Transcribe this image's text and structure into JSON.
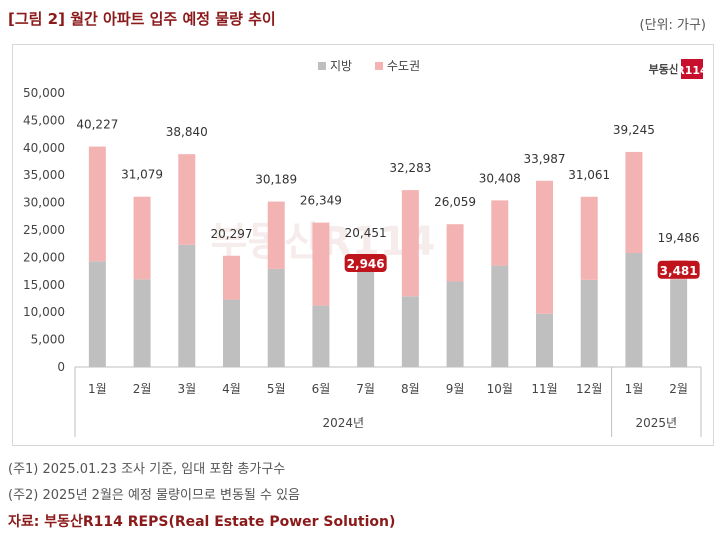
{
  "header": {
    "title": "[그림 2] 월간 아파트 입주 예정 물량 추이",
    "unit": "(단위: 가구)"
  },
  "logo": {
    "text": "부동산",
    "mark": "R114",
    "color": "#c8102e"
  },
  "watermark": "부동산R114",
  "notes": {
    "note1": "(주1) 2025.01.23 조사 기준, 임대 포함 총가구수",
    "note2": "(주2) 2025년 2월은 예정 물량이므로 변동될 수 있음"
  },
  "source": "자료: 부동산R114 REPS(Real Estate Power Solution)",
  "colors": {
    "regional": "#bfbfbf",
    "capital": "#f4b3b3",
    "highlight_label_bg": "#c0141c",
    "title": "#8b1a1a"
  },
  "chart_data": {
    "type": "bar",
    "stacked": true,
    "title": "",
    "legend": [
      "지방",
      "수도권"
    ],
    "legend_position": "top-center",
    "categories": [
      "1월",
      "2월",
      "3월",
      "4월",
      "5월",
      "6월",
      "7월",
      "8월",
      "9월",
      "10월",
      "11월",
      "12월",
      "1월",
      "2월"
    ],
    "year_groups": [
      {
        "label": "2024년",
        "count": 12
      },
      {
        "label": "2025년",
        "count": 2
      }
    ],
    "series": [
      {
        "name": "지방",
        "values": [
          19300,
          16000,
          22300,
          12300,
          17900,
          11200,
          17505,
          12900,
          15600,
          18500,
          9700,
          15900,
          20800,
          16005
        ]
      },
      {
        "name": "수도권",
        "values": [
          20927,
          15079,
          16540,
          7997,
          12289,
          15149,
          2946,
          19383,
          10459,
          11908,
          24287,
          15161,
          18445,
          3481
        ]
      }
    ],
    "totals": [
      40227,
      31079,
      38840,
      20297,
      30189,
      26349,
      20451,
      32283,
      26059,
      30408,
      33987,
      31061,
      39245,
      19486
    ],
    "total_labels": [
      "40,227",
      "31,079",
      "38,840",
      "20,297",
      "30,189",
      "26,349",
      "20,451",
      "32,283",
      "26,059",
      "30,408",
      "33,987",
      "31,061",
      "39,245",
      "19,486"
    ],
    "highlights": [
      {
        "index": 6,
        "label": "2,946"
      },
      {
        "index": 13,
        "label": "3,481"
      }
    ],
    "y_ticks": [
      0,
      5000,
      10000,
      15000,
      20000,
      25000,
      30000,
      35000,
      40000,
      45000,
      50000
    ],
    "y_tick_labels": [
      "0",
      "5,000",
      "10,000",
      "15,000",
      "20,000",
      "25,000",
      "30,000",
      "35,000",
      "40,000",
      "45,000",
      "50,000"
    ],
    "ylim": [
      0,
      50000
    ],
    "xlabel": "",
    "ylabel": ""
  }
}
